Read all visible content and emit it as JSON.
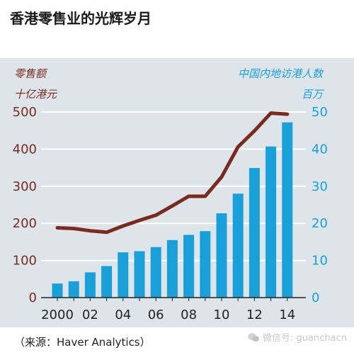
{
  "chart_data": {
    "type": "bar+line",
    "title": "香港零售业的光辉岁月",
    "ylabel_left": [
      "零售额",
      "十亿港元"
    ],
    "ylabel_right": [
      "中国内地访港人数",
      "百万"
    ],
    "x": [
      2000,
      2001,
      2002,
      2003,
      2004,
      2005,
      2006,
      2007,
      2008,
      2009,
      2010,
      2011,
      2012,
      2013,
      2014
    ],
    "x_tick_labels": [
      "2000",
      "02",
      "04",
      "06",
      "08",
      "10",
      "12",
      "14"
    ],
    "x_tick_values": [
      2000,
      2002,
      2004,
      2006,
      2008,
      2010,
      2012,
      2014
    ],
    "yticks_left": [
      "0",
      "100",
      "200",
      "300",
      "400",
      "500"
    ],
    "yticks_right": [
      "0",
      "10",
      "20",
      "30",
      "40",
      "50"
    ],
    "ylim_left": [
      0,
      500
    ],
    "ylim_right": [
      0,
      50
    ],
    "grid": true,
    "series": [
      {
        "kind": "bar",
        "axis": "right",
        "color": "#1aa0d8",
        "values": [
          3.8,
          4.4,
          6.8,
          8.5,
          12.2,
          12.5,
          13.6,
          15.5,
          16.9,
          17.9,
          22.7,
          28.0,
          34.9,
          40.7,
          47.2
        ]
      },
      {
        "kind": "line",
        "axis": "left",
        "color": "#7a2a1e",
        "values": [
          188,
          186,
          180,
          176,
          193,
          208,
          222,
          247,
          273,
          273,
          325,
          406,
          449,
          497,
          494
        ]
      }
    ]
  },
  "source_note": "（来源：Haver Analytics）",
  "watermark": {
    "icon": "wechat-icon",
    "text": "微信号: guanchacn"
  }
}
